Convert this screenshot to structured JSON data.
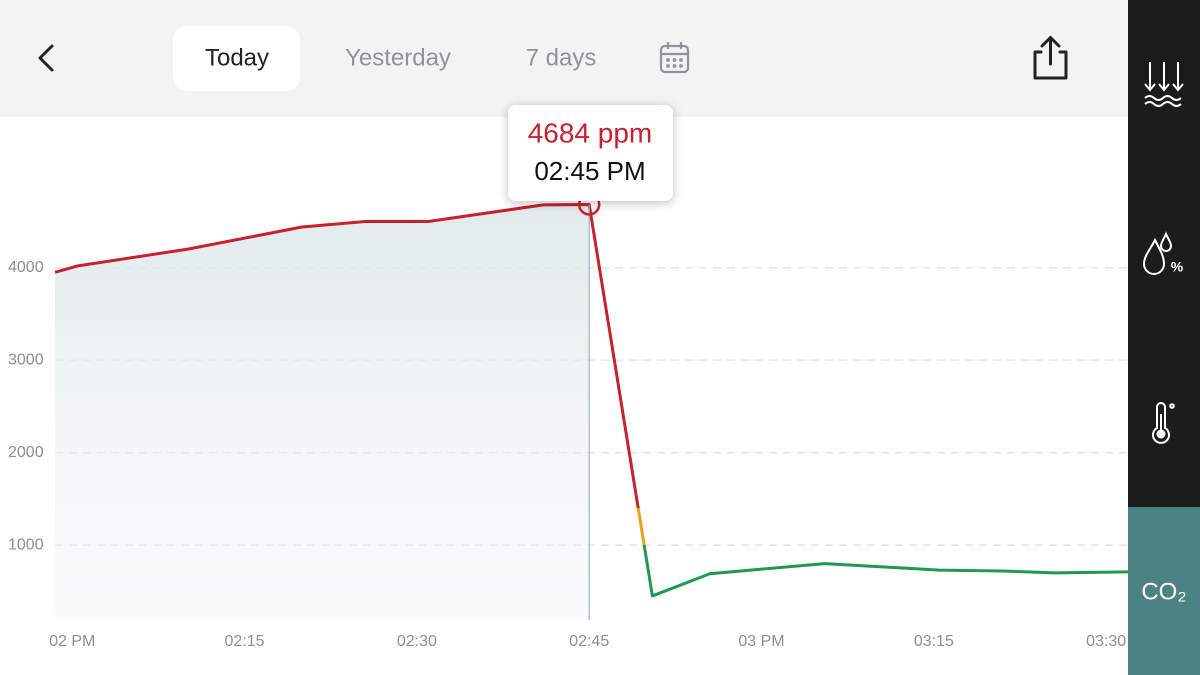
{
  "header": {
    "tabs": [
      "Today",
      "Yesterday",
      "7 days"
    ]
  },
  "sidebar": {
    "active": "CO₂"
  },
  "tooltip": {
    "value": "4684 ppm",
    "time": "02:45 PM"
  },
  "chart_data": {
    "type": "line",
    "x": [
      -1.5,
      0.5,
      10,
      20,
      25.5,
      31,
      41,
      45,
      50.5,
      55.5,
      60,
      65.5,
      70.5,
      75.5,
      81,
      85.5,
      91.9
    ],
    "series": [
      {
        "name": "CO₂",
        "color": "#c8202f",
        "values": [
          3950,
          4020,
          4200,
          4440,
          4500,
          4500,
          4680,
          4684,
          450,
          690,
          740,
          800,
          765,
          730,
          720,
          700,
          710
        ]
      }
    ],
    "color_bands": [
      {
        "from": 1400,
        "color": "#c8202f"
      },
      {
        "from": 1000,
        "color": "#e8a21a"
      },
      {
        "from": 0,
        "color": "#1e9a50"
      }
    ],
    "highlight_index": 7,
    "xlim": [
      -1.5,
      91.9
    ],
    "xticks": [
      {
        "value": 0,
        "label": "02 PM"
      },
      {
        "value": 15,
        "label": "02:15"
      },
      {
        "value": 30,
        "label": "02:30"
      },
      {
        "value": 45,
        "label": "02:45"
      },
      {
        "value": 60,
        "label": "03 PM"
      },
      {
        "value": 75,
        "label": "03:15"
      },
      {
        "value": 90,
        "label": "03:30"
      }
    ],
    "ylim": [
      190,
      5630
    ],
    "yticks": [
      1000,
      2000,
      3000,
      4000
    ],
    "grid": true
  }
}
